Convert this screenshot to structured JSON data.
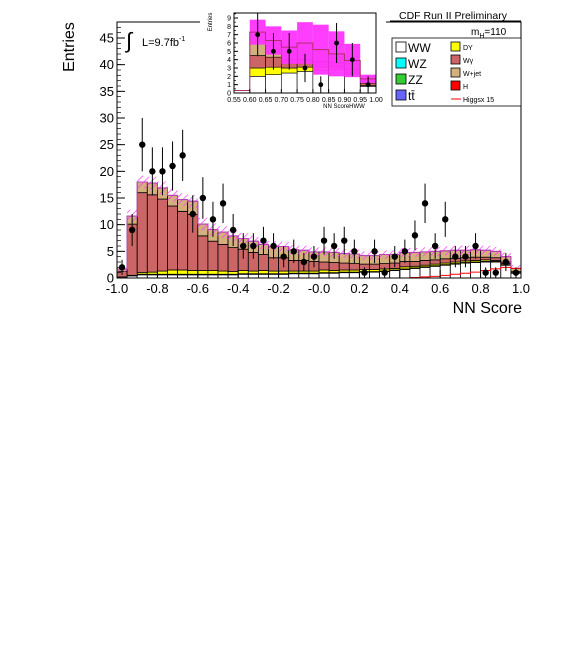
{
  "header": {
    "experiment": "CDF Run II Preliminary",
    "mass": "m",
    "mass_sub": "H",
    "mass_value": "=110",
    "lumi": "L=9.7fb",
    "lumi_sup": "-1",
    "integral": "∫"
  },
  "colors": {
    "WW": "#ffffff",
    "WZ": "#00ffff",
    "ZZ": "#33cc33",
    "tt": "#6666ff",
    "DY": "#ffff00",
    "Wgamma": "#cc6666",
    "Wjet": "#d4b07e",
    "H": "#ff0000",
    "higgs_line": "#ff0000",
    "uncertainty_band": "#ff33ff",
    "data": "#000000"
  },
  "legend": {
    "left": [
      {
        "key": "WW",
        "label": "WW"
      },
      {
        "key": "WZ",
        "label": "WZ"
      },
      {
        "key": "ZZ",
        "label": "ZZ"
      },
      {
        "key": "tt",
        "label": "tt̄"
      }
    ],
    "right": [
      {
        "key": "DY",
        "label": "DY"
      },
      {
        "key": "Wgamma",
        "label": "Wγ"
      },
      {
        "key": "Wjet",
        "label": "W+jet"
      },
      {
        "key": "H",
        "label": "H"
      },
      {
        "key": "higgs_line",
        "label": "Higgsx 15"
      }
    ]
  },
  "chart_data": [
    {
      "type": "bar",
      "stacked": true,
      "xlabel": "NN Score",
      "ylabel": "Entries",
      "xlim": [
        -1.0,
        1.0
      ],
      "ylim": [
        0,
        48
      ],
      "x_ticks": [
        "-1.0",
        "-0.8",
        "-0.6",
        "-0.4",
        "-0.2",
        "-0.0",
        "0.2",
        "0.4",
        "0.6",
        "0.8",
        "1.0"
      ],
      "y_ticks": [
        "0",
        "5",
        "10",
        "15",
        "20",
        "25",
        "30",
        "35",
        "40",
        "45"
      ],
      "bin_edges_from": -1.0,
      "bin_width": 0.05,
      "series": [
        {
          "name": "WW",
          "values": [
            0.2,
            0.4,
            0.6,
            0.6,
            0.6,
            0.6,
            0.6,
            0.6,
            0.6,
            0.6,
            0.6,
            0.6,
            0.7,
            0.7,
            0.7,
            0.7,
            0.7,
            0.8,
            0.8,
            0.8,
            0.9,
            0.9,
            1.0,
            1.0,
            1.1,
            1.1,
            1.2,
            1.4,
            1.6,
            1.8,
            2.0,
            2.2,
            2.4,
            2.6,
            2.8,
            2.9,
            3.0,
            3.0,
            2.4,
            0.9
          ]
        },
        {
          "name": "ZZ",
          "values": [
            0.0,
            0.0,
            0.1,
            0.1,
            0.1,
            0.1,
            0.1,
            0.1,
            0.1,
            0.1,
            0.1,
            0.1,
            0.1,
            0.1,
            0.1,
            0.1,
            0.1,
            0.1,
            0.1,
            0.1,
            0.1,
            0.1,
            0.1,
            0.1,
            0.1,
            0.1,
            0.1,
            0.1,
            0.1,
            0.1,
            0.1,
            0.1,
            0.1,
            0.1,
            0.1,
            0.1,
            0.1,
            0.1,
            0.1,
            0.0
          ]
        },
        {
          "name": "DY",
          "values": [
            0.0,
            0.1,
            0.3,
            0.4,
            0.6,
            0.8,
            0.8,
            0.7,
            0.7,
            0.7,
            0.6,
            0.5,
            0.6,
            0.5,
            0.6,
            0.5,
            0.5,
            0.4,
            0.4,
            0.4,
            0.5,
            0.4,
            0.4,
            0.4,
            0.4,
            0.4,
            0.4,
            0.3,
            0.4,
            0.3,
            0.3,
            0.3,
            0.3,
            0.3,
            0.3,
            0.3,
            0.3,
            0.2,
            0.2,
            0.1
          ]
        },
        {
          "name": "Wγ",
          "values": [
            1.0,
            9.6,
            15.0,
            14.5,
            13.5,
            12.0,
            11.0,
            10.5,
            6.5,
            5.5,
            5.0,
            4.5,
            4.0,
            3.5,
            3.0,
            2.5,
            2.5,
            2.0,
            2.0,
            1.8,
            1.5,
            1.5,
            1.3,
            1.2,
            1.0,
            1.0,
            1.0,
            1.0,
            1.0,
            0.9,
            0.9,
            0.8,
            0.8,
            0.7,
            0.6,
            0.6,
            0.5,
            0.5,
            0.3,
            0.2
          ]
        },
        {
          "name": "W+jet",
          "values": [
            0.5,
            1.5,
            2.0,
            2.2,
            2.1,
            2.0,
            2.2,
            2.5,
            2.2,
            2.2,
            2.3,
            2.2,
            2.0,
            2.1,
            1.9,
            2.2,
            2.1,
            2.0,
            1.9,
            1.8,
            1.9,
            1.9,
            1.8,
            1.8,
            1.6,
            1.6,
            1.7,
            1.6,
            1.7,
            1.7,
            1.6,
            1.6,
            1.5,
            1.5,
            1.4,
            1.4,
            1.3,
            1.2,
            1.0,
            0.6
          ]
        }
      ],
      "band_half_width": 1.2,
      "higgs_line": [
        0.0,
        0.0,
        0.0,
        0.0,
        0.0,
        0.0,
        0.0,
        0.0,
        0.0,
        0.0,
        0.0,
        0.0,
        0.0,
        0.0,
        0.0,
        0.0,
        0.0,
        0.0,
        0.0,
        0.0,
        0.0,
        0.0,
        0.0,
        0.0,
        0.0,
        0.0,
        0.0,
        0.0,
        0.0,
        0.1,
        0.2,
        0.3,
        0.5,
        0.7,
        0.9,
        1.1,
        1.4,
        1.7,
        2.0,
        1.8
      ],
      "data": [
        2,
        9,
        25,
        20,
        20,
        21,
        23,
        12,
        15,
        11,
        14,
        9,
        6,
        6,
        7,
        6,
        4,
        5,
        3,
        4,
        7,
        6,
        7,
        5,
        1,
        5,
        1,
        4,
        5,
        8,
        14,
        6,
        11,
        4,
        4,
        6,
        1,
        1,
        3,
        1
      ],
      "data_err": [
        1.4,
        3.0,
        5.0,
        4.5,
        4.5,
        4.6,
        4.8,
        3.5,
        3.9,
        3.3,
        3.7,
        3.0,
        2.4,
        2.4,
        2.6,
        2.4,
        2.0,
        2.2,
        1.7,
        2.0,
        2.6,
        2.4,
        2.6,
        2.2,
        1.0,
        2.2,
        1.0,
        2.0,
        2.2,
        2.8,
        3.7,
        2.4,
        3.3,
        2.0,
        2.0,
        2.4,
        1.0,
        1.0,
        1.7,
        1.0
      ]
    },
    {
      "type": "bar",
      "stacked": true,
      "inset": true,
      "xlabel": "NN ScoreHWW",
      "ylabel": "Entries",
      "xlim": [
        0.55,
        1.0
      ],
      "ylim": [
        0,
        9.6
      ],
      "x_ticks": [
        "0.55",
        "0.60",
        "0.65",
        "0.70",
        "0.75",
        "0.80",
        "0.85",
        "0.90",
        "0.95",
        "1.00"
      ],
      "y_ticks": [
        "0",
        "1",
        "2",
        "3",
        "4",
        "5",
        "6",
        "7",
        "8",
        "9"
      ],
      "bin_edges_from": 0.55,
      "bin_width": 0.05,
      "series": [
        {
          "name": "WW",
          "values": [
            0.3,
            2.0,
            2.2,
            2.4,
            2.6,
            2.7,
            2.8,
            2.2,
            0.8
          ]
        },
        {
          "name": "DY",
          "values": [
            0.0,
            1.0,
            0.9,
            0.6,
            0.5,
            0.4,
            0.3,
            0.2,
            0.1
          ]
        },
        {
          "name": "Wγ",
          "values": [
            0.0,
            1.5,
            1.2,
            1.0,
            0.9,
            0.7,
            0.6,
            0.5,
            0.3
          ]
        },
        {
          "name": "W+jet",
          "values": [
            0.0,
            2.8,
            2.0,
            1.5,
            2.0,
            1.4,
            1.0,
            1.0,
            0.5
          ]
        }
      ],
      "band": [
        0.0,
        1.5,
        1.7,
        2.0,
        2.5,
        3.0,
        2.7,
        2.0,
        0.5
      ],
      "data": [
        0,
        7,
        5,
        5,
        3,
        1,
        6,
        4,
        1
      ],
      "data_err": [
        0,
        2.6,
        2.2,
        2.2,
        1.7,
        1.0,
        2.4,
        2.0,
        1.0
      ]
    }
  ]
}
